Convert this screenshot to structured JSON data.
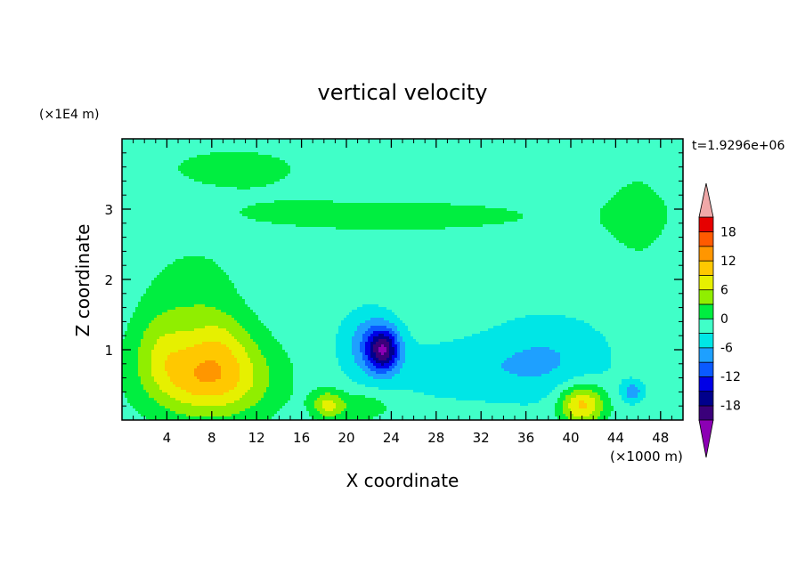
{
  "chart_data": {
    "type": "heatmap",
    "title": "vertical velocity",
    "xlabel": "X coordinate",
    "ylabel": "Z coordinate",
    "x_unit": "(×1000 m)",
    "y_unit": "(×1E4 m)",
    "time_label": "t=1.9296e+06",
    "xlim": [
      0,
      50
    ],
    "ylim": [
      0,
      4
    ],
    "x_ticks": [
      4,
      8,
      12,
      16,
      20,
      24,
      28,
      32,
      36,
      40,
      44,
      48
    ],
    "y_ticks": [
      1,
      2,
      3
    ],
    "background_value": -1.5,
    "features": [
      {
        "x": 7.8,
        "z": 0.6,
        "sx": 5.2,
        "sz": 0.55,
        "amp": 13
      },
      {
        "x": 8.5,
        "z": 1.2,
        "sx": 3.0,
        "sz": 0.45,
        "amp": 5
      },
      {
        "x": 3.5,
        "z": 1.1,
        "sx": 2.6,
        "sz": 0.6,
        "amp": 5
      },
      {
        "x": 6.5,
        "z": 1.9,
        "sx": 3.5,
        "sz": 0.5,
        "amp": 3
      },
      {
        "x": 41,
        "z": 0.22,
        "sx": 2.0,
        "sz": 0.28,
        "amp": 12
      },
      {
        "x": 18.3,
        "z": 0.22,
        "sx": 1.3,
        "sz": 0.2,
        "amp": 7
      },
      {
        "x": 24,
        "z": 2.9,
        "sx": 22,
        "sz": 0.35,
        "amp": 2
      },
      {
        "x": 10,
        "z": 3.6,
        "sx": 9,
        "sz": 0.4,
        "amp": 2
      },
      {
        "x": 46,
        "z": 2.9,
        "sx": 3,
        "sz": 0.8,
        "amp": 2
      },
      {
        "x": 23.3,
        "z": 1.0,
        "sx": 1.4,
        "sz": 0.3,
        "amp": -15
      },
      {
        "x": 22,
        "z": 1.1,
        "sx": 2.4,
        "sz": 0.45,
        "amp": -6
      },
      {
        "x": 38,
        "z": 0.9,
        "sx": 5.5,
        "sz": 0.6,
        "amp": -4
      },
      {
        "x": 30,
        "z": 0.7,
        "sx": 8,
        "sz": 0.45,
        "amp": -3
      },
      {
        "x": 45.5,
        "z": 0.4,
        "sx": 1.0,
        "sz": 0.15,
        "amp": -6
      },
      {
        "x": 21,
        "z": 0.2,
        "sx": 3,
        "sz": 0.2,
        "amp": 4
      }
    ],
    "colorbar": {
      "levels": [
        -21,
        -18,
        -15,
        -12,
        -9,
        -6,
        -3,
        0,
        3,
        6,
        9,
        12,
        15,
        18,
        21
      ],
      "tick_labels": [
        "18",
        "12",
        "6",
        "0",
        "-6",
        "-12",
        "-18"
      ],
      "tick_values": [
        18,
        12,
        6,
        0,
        -6,
        -12,
        -18
      ],
      "colors": [
        "#3a007a",
        "#00008c",
        "#0000e6",
        "#0a5aff",
        "#1ea0ff",
        "#00e6e6",
        "#40ffc8",
        "#00ee40",
        "#90ee00",
        "#e6f000",
        "#ffc800",
        "#ff9600",
        "#ff5a00",
        "#e60000"
      ],
      "under_color": "#8c00b4",
      "over_color": "#f0a8a8"
    }
  }
}
